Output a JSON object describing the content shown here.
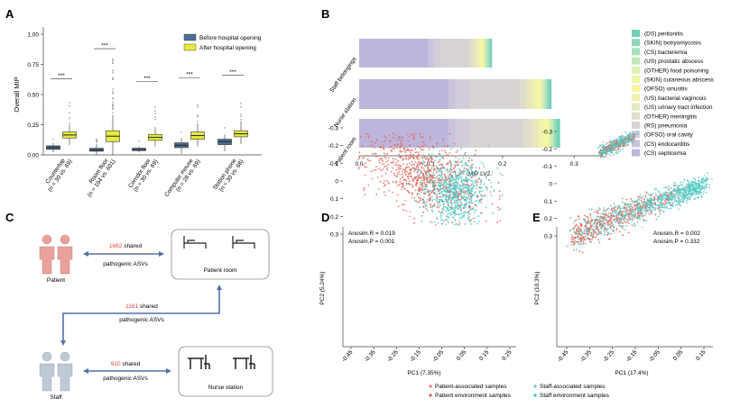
{
  "panelA": {
    "letter": "A",
    "ylabel": "Overall MIP",
    "yticks": [
      "0.00",
      "0.25",
      "0.50",
      "0.75",
      "1.00"
    ],
    "ylim": [
      0,
      1.05
    ],
    "legend": [
      "Before hospital opening",
      "After hospital opening"
    ],
    "colors": {
      "before": "#4a6e93",
      "after": "#e6ea3c"
    },
    "groups": [
      {
        "label": "Countertop",
        "n": "(n = 30 vs. 69)",
        "sig": "***",
        "before": {
          "min": 0.02,
          "q1": 0.045,
          "med": 0.06,
          "q3": 0.075,
          "max": 0.1
        },
        "after": {
          "min": 0.08,
          "q1": 0.14,
          "med": 0.165,
          "q3": 0.19,
          "max": 0.25
        }
      },
      {
        "label": "Room floor",
        "n": "(n = 194 vs. 601)",
        "sig": "***",
        "before": {
          "min": 0.0,
          "q1": 0.03,
          "med": 0.04,
          "q3": 0.055,
          "max": 0.09
        },
        "after": {
          "min": 0.0,
          "q1": 0.11,
          "med": 0.155,
          "q3": 0.2,
          "max": 0.33
        }
      },
      {
        "label": "Corridor floor",
        "n": "(n = 30 vs. 69)",
        "sig": "***",
        "before": {
          "min": 0.02,
          "q1": 0.035,
          "med": 0.045,
          "q3": 0.055,
          "max": 0.07
        },
        "after": {
          "min": 0.07,
          "q1": 0.12,
          "med": 0.145,
          "q3": 0.17,
          "max": 0.23
        }
      },
      {
        "label": "Computer mouse",
        "n": "(n = 28 vs. 69)",
        "sig": "***",
        "before": {
          "min": 0.01,
          "q1": 0.06,
          "med": 0.08,
          "q3": 0.1,
          "max": 0.14
        },
        "after": {
          "min": 0.07,
          "q1": 0.13,
          "med": 0.16,
          "q3": 0.19,
          "max": 0.26
        }
      },
      {
        "label": "Station phone",
        "n": "(n = 30 vs. 68)",
        "sig": "***",
        "before": {
          "min": 0.03,
          "q1": 0.085,
          "med": 0.11,
          "q3": 0.13,
          "max": 0.17
        },
        "after": {
          "min": 0.09,
          "q1": 0.15,
          "med": 0.175,
          "q3": 0.2,
          "max": 0.28
        }
      }
    ]
  },
  "panelB": {
    "letter": "B",
    "xlabel": "MIP LV2",
    "xticks": [
      "0.0",
      "0.1",
      "0.2",
      "0.3"
    ],
    "xlim": [
      0,
      0.34
    ],
    "legend": [
      {
        "name": "(DS) peritonitis",
        "color": "#72d0b6"
      },
      {
        "name": "(SKIN) botryomycosis",
        "color": "#8fd8ba"
      },
      {
        "name": "(CS) bacteremia",
        "color": "#a8e0bb"
      },
      {
        "name": "(US) prostatic abscess",
        "color": "#c4e8ba"
      },
      {
        "name": "(OTHER) food poisoning",
        "color": "#dcefb4"
      },
      {
        "name": "(SKIN) cutaneous abscess",
        "color": "#eef6a8"
      },
      {
        "name": "(OFSO) sinusitis",
        "color": "#f7f79f"
      },
      {
        "name": "(US) bacterial vaginosis",
        "color": "#f1f0ae"
      },
      {
        "name": "(US) urinary tract infection",
        "color": "#e9e7be"
      },
      {
        "name": "(OTHER) meningitis",
        "color": "#e0ddcc"
      },
      {
        "name": "(RS) pneumonia",
        "color": "#d8d4d4"
      },
      {
        "name": "(OFSO) oral cavity",
        "color": "#d2ccda"
      },
      {
        "name": "(CS) endocarditis",
        "color": "#cac3dd"
      },
      {
        "name": "(CS) septicemia",
        "color": "#bdb5dc"
      }
    ],
    "categories": [
      "Staff belongings",
      "Nurse station",
      "Patient room"
    ],
    "series_values": [
      [
        0.002,
        0.002,
        0.002,
        0.003,
        0.002,
        0.002,
        0.003,
        0.004,
        0.005,
        0.006,
        0.04,
        0.01,
        0.008,
        0.096
      ],
      [
        0.003,
        0.003,
        0.002,
        0.003,
        0.003,
        0.002,
        0.004,
        0.006,
        0.008,
        0.01,
        0.07,
        0.02,
        0.01,
        0.124
      ],
      [
        0.004,
        0.003,
        0.002,
        0.003,
        0.003,
        0.003,
        0.005,
        0.007,
        0.009,
        0.012,
        0.075,
        0.02,
        0.01,
        0.124
      ]
    ]
  },
  "panelC": {
    "letter": "C",
    "patient_label": "Patient",
    "staff_label": "Staff",
    "patient_room": "Patient room",
    "nurse_station": "Nurse station",
    "arrow1_num": "1662",
    "arrow1_rest": " shared",
    "arrow1_line2": "pathogenic ASVs",
    "arrow2_num": "1161",
    "arrow2_rest": " shared",
    "arrow2_line2": "pathogenic ASVs",
    "arrow3_num": "910",
    "arrow3_rest": " shared",
    "arrow3_line2": "pathogenic ASVs",
    "colors": {
      "patient": "#e8a29b",
      "staff": "#bfc8d6",
      "arrow": "#5470a7",
      "number": "#e0423a"
    }
  },
  "panelD": {
    "letter": "D",
    "stat1": "Anosim.R = 0.019",
    "stat2": "Anosim.P = 0.001",
    "xlabel": "PC1 (7.35%)",
    "ylabel": "PC2 (5.24%)",
    "xticks": [
      "-0.45",
      "-0.35",
      "-0.25",
      "-0.15",
      "-0.05",
      "0.05",
      "0.15",
      "0.25"
    ],
    "yticks": [
      "0.3",
      "0.2",
      "0.1",
      "0",
      "-0.1",
      "-0.2",
      "-0.3"
    ]
  },
  "panelE": {
    "letter": "E",
    "stat1": "Anosim.R = 0.002",
    "stat2": "Anosim.P = 0.332",
    "xlabel": "PC1 (17.4%)",
    "ylabel": "PC2 (10.3%)",
    "xticks": [
      "-0.45",
      "-0.35",
      "-0.25",
      "-0.15",
      "-0.05",
      "0.05",
      "0.15"
    ],
    "yticks": [
      "0.3",
      "0.2",
      "0.1",
      "0",
      "-0.1",
      "-0.2",
      "-0.3"
    ]
  },
  "legendDE": {
    "items": [
      {
        "name": "Patient-associated samples",
        "color": "#e9766a"
      },
      {
        "name": "Staff-associated samples",
        "color": "#6ccfca"
      },
      {
        "name": "Patient environment samples",
        "color": "#e15a4e"
      },
      {
        "name": "Staff environment samples",
        "color": "#3dc6c1"
      }
    ]
  }
}
